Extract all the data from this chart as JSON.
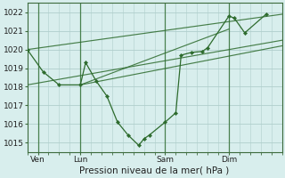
{
  "bg_color": "#d8eeed",
  "grid_color": "#b0cecc",
  "line_color": "#2d6b2d",
  "marker_color": "#2d6b2d",
  "xlabel": "Pression niveau de la mer( hPa )",
  "ylim": [
    1014.5,
    1022.5
  ],
  "yticks": [
    1015,
    1016,
    1017,
    1018,
    1019,
    1020,
    1021,
    1022
  ],
  "xtick_labels": [
    "Ven",
    "Lun",
    "Sam",
    "Dim"
  ],
  "xtick_positions": [
    1,
    5,
    13,
    19
  ],
  "vline_positions": [
    1,
    5,
    13,
    19
  ],
  "xlim": [
    0,
    24
  ],
  "main_series": {
    "x": [
      0,
      1.5,
      3,
      5,
      5.5,
      6.5,
      7.5,
      8.5,
      9.5,
      10.5,
      11,
      11.5,
      13,
      14,
      14.5,
      15.5,
      16.5,
      17,
      19,
      19.5,
      20.5,
      22.5
    ],
    "y": [
      1020.0,
      1018.8,
      1018.1,
      1018.1,
      1019.3,
      1018.3,
      1017.5,
      1016.1,
      1015.4,
      1014.85,
      1015.2,
      1015.4,
      1016.1,
      1016.6,
      1019.7,
      1019.85,
      1019.9,
      1020.1,
      1021.8,
      1021.7,
      1020.9,
      1021.9
    ]
  },
  "trend_lines": [
    {
      "x": [
        0,
        24
      ],
      "y": [
        1020.0,
        1021.9
      ]
    },
    {
      "x": [
        0,
        24
      ],
      "y": [
        1018.1,
        1020.5
      ]
    },
    {
      "x": [
        5,
        24
      ],
      "y": [
        1018.1,
        1020.2
      ]
    },
    {
      "x": [
        5,
        19
      ],
      "y": [
        1018.1,
        1021.1
      ]
    }
  ]
}
